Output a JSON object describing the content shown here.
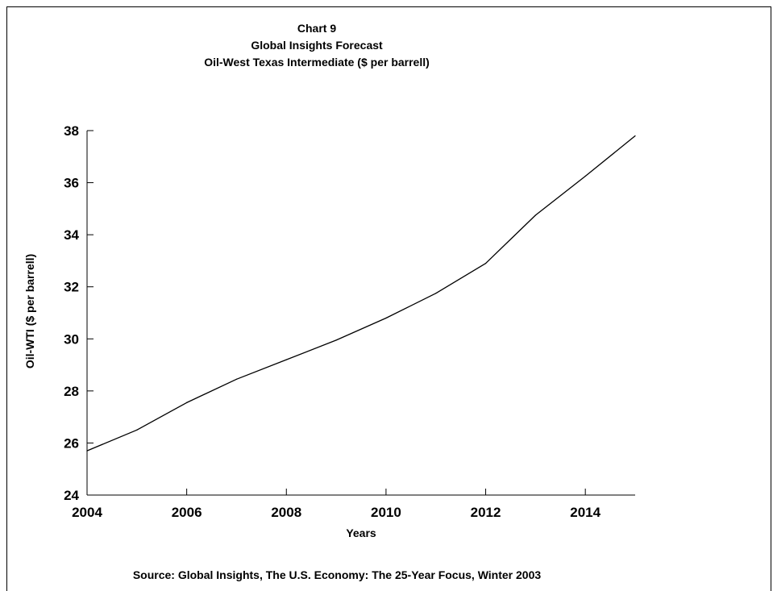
{
  "chart_data": {
    "type": "line",
    "title_lines": [
      "Chart 9",
      "Global Insights Forecast",
      "Oil-West Texas Intermediate ($ per barrell)"
    ],
    "xlabel": "Years",
    "ylabel": "Oil-WTI ($ per barrell)",
    "xlim": [
      2004,
      2015
    ],
    "ylim": [
      24,
      38
    ],
    "x_ticks": [
      2004,
      2006,
      2008,
      2010,
      2012,
      2014
    ],
    "y_ticks": [
      24,
      26,
      28,
      30,
      32,
      34,
      36,
      38
    ],
    "grid": false,
    "series": [
      {
        "x": [
          2004,
          2005,
          2006,
          2007,
          2008,
          2009,
          2010,
          2011,
          2012,
          2013,
          2014,
          2015
        ],
        "values": [
          25.7,
          26.5,
          27.55,
          28.45,
          29.2,
          29.95,
          30.8,
          31.75,
          32.9,
          34.75,
          36.25,
          37.8
        ]
      }
    ],
    "source": "Source: Global Insights, The U.S. Economy: The 25-Year Focus, Winter 2003"
  },
  "colors": {
    "line": "#000000",
    "axis": "#000000",
    "background": "#ffffff"
  }
}
